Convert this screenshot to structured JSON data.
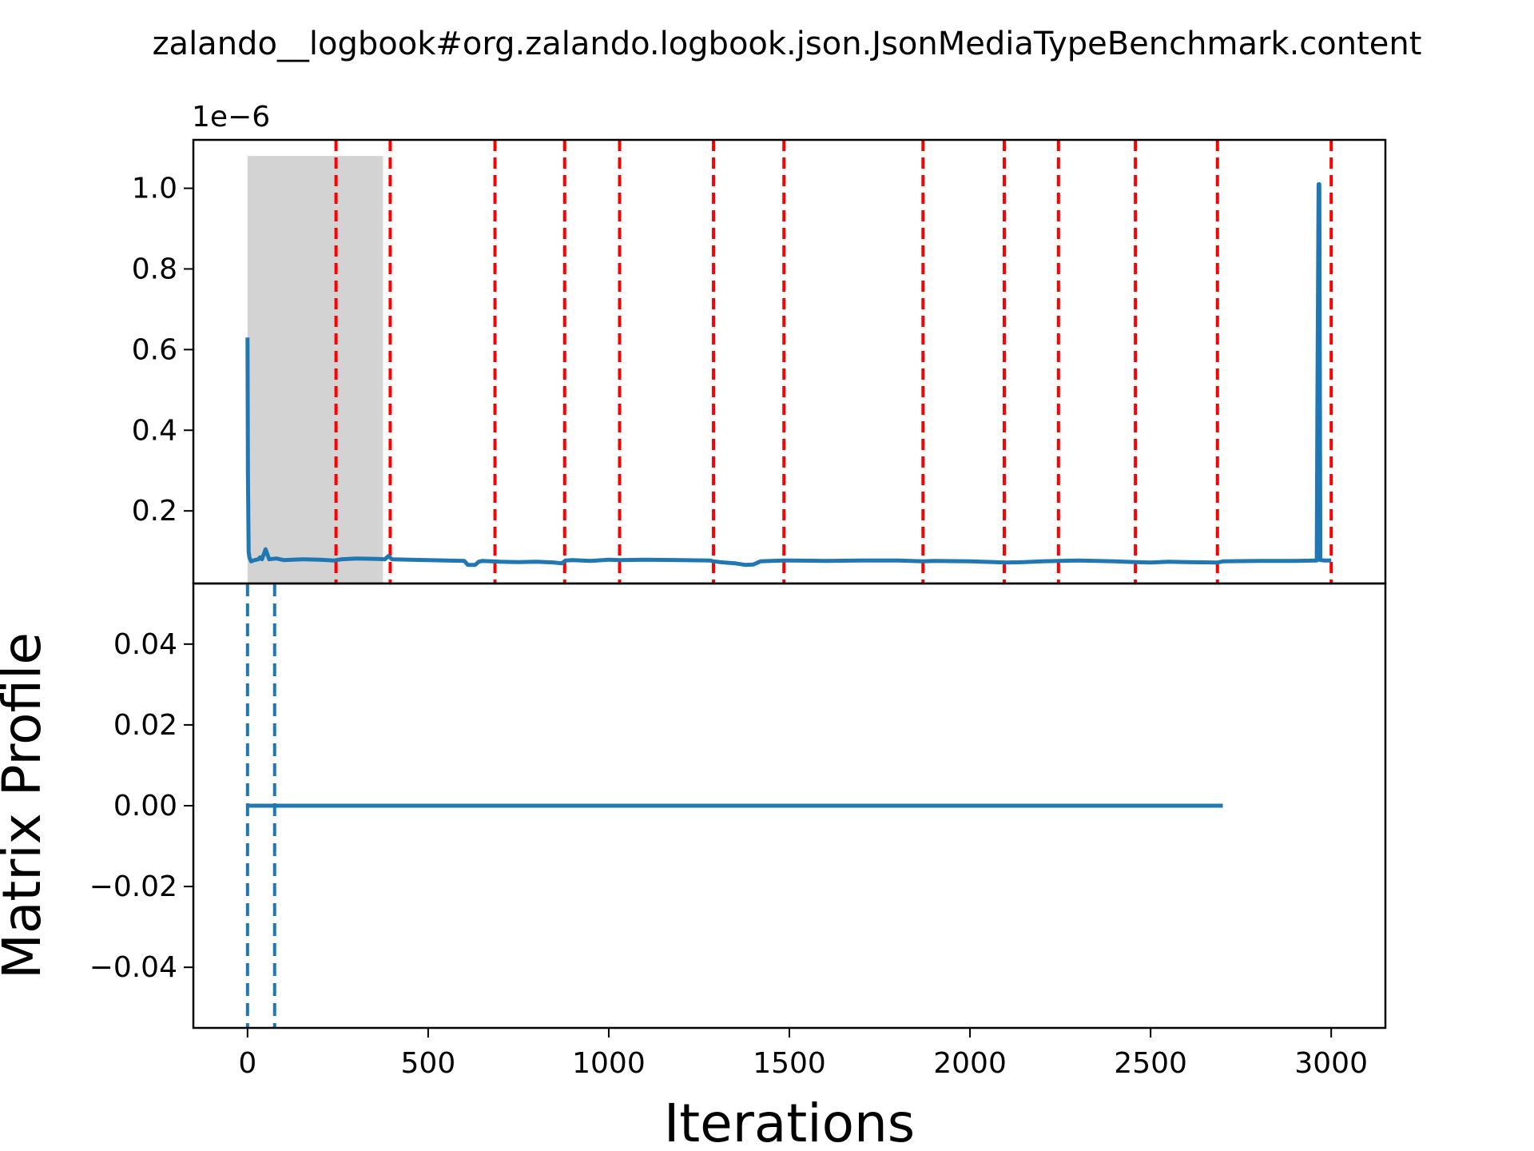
{
  "chart_data": {
    "title": "zalando__logbook#org.zalando.logbook.json.JsonMediaTypeBenchmark.content",
    "xlabel": "Iterations",
    "ylabel": "Matrix Profile",
    "shared_x": {
      "xlim": [
        -150,
        3150
      ],
      "ticks": [
        0,
        500,
        1000,
        1500,
        2000,
        2500,
        3000
      ],
      "tick_labels": [
        "0",
        "500",
        "1000",
        "1500",
        "2000",
        "2500",
        "3000"
      ]
    },
    "panels": [
      {
        "type": "line",
        "offset_label": "1e−6",
        "ylim": [
          0.02,
          1.12
        ],
        "yticks": [
          0.2,
          0.4,
          0.6,
          0.8,
          1.0
        ],
        "ytick_labels": [
          "0.2",
          "0.4",
          "0.6",
          "0.8",
          "1.0"
        ],
        "line_color": "#1f77b4",
        "shaded_region": {
          "x": [
            0,
            375
          ],
          "y": [
            0.02,
            1.08
          ],
          "color": "#d3d3d3"
        },
        "change_points": [
          245,
          395,
          685,
          878,
          1030,
          1290,
          1485,
          1870,
          2095,
          2245,
          2458,
          2685,
          3000
        ],
        "change_point_color": "#ff0000",
        "series": {
          "x": [
            0,
            1,
            3,
            5,
            10,
            20,
            30,
            35,
            40,
            50,
            60,
            80,
            100,
            150,
            200,
            240,
            260,
            300,
            360,
            380,
            390,
            400,
            450,
            500,
            550,
            600,
            610,
            630,
            640,
            650,
            700,
            750,
            800,
            850,
            870,
            880,
            900,
            950,
            1000,
            1030,
            1100,
            1200,
            1280,
            1290,
            1320,
            1350,
            1380,
            1400,
            1420,
            1450,
            1485,
            1500,
            1600,
            1700,
            1800,
            1870,
            1900,
            2000,
            2100,
            2150,
            2200,
            2245,
            2300,
            2400,
            2458,
            2500,
            2550,
            2600,
            2685,
            2700,
            2800,
            2900,
            2960,
            2962,
            2965,
            2967,
            2970,
            2980,
            3000
          ],
          "y": [
            0.63,
            0.3,
            0.1,
            0.085,
            0.075,
            0.078,
            0.08,
            0.085,
            0.08,
            0.105,
            0.08,
            0.082,
            0.078,
            0.08,
            0.079,
            0.077,
            0.08,
            0.082,
            0.081,
            0.08,
            0.088,
            0.08,
            0.079,
            0.078,
            0.077,
            0.076,
            0.066,
            0.066,
            0.074,
            0.076,
            0.074,
            0.073,
            0.074,
            0.072,
            0.07,
            0.077,
            0.078,
            0.076,
            0.079,
            0.078,
            0.079,
            0.078,
            0.077,
            0.075,
            0.072,
            0.07,
            0.066,
            0.067,
            0.075,
            0.076,
            0.077,
            0.077,
            0.076,
            0.077,
            0.077,
            0.075,
            0.076,
            0.075,
            0.072,
            0.073,
            0.075,
            0.076,
            0.077,
            0.075,
            0.073,
            0.072,
            0.074,
            0.073,
            0.072,
            0.075,
            0.076,
            0.076,
            0.077,
            0.5,
            1.01,
            1.01,
            0.078,
            0.077,
            0.077
          ]
        }
      },
      {
        "type": "line",
        "ylim": [
          -0.055,
          0.055
        ],
        "yticks": [
          -0.04,
          -0.02,
          0.0,
          0.02,
          0.04
        ],
        "ytick_labels": [
          "−0.04",
          "−0.02",
          "0.00",
          "0.02",
          "0.04"
        ],
        "line_color": "#1f77b4",
        "markers": [
          0,
          75
        ],
        "series": {
          "x": [
            0,
            2700
          ],
          "y": [
            0,
            0
          ]
        }
      }
    ]
  }
}
